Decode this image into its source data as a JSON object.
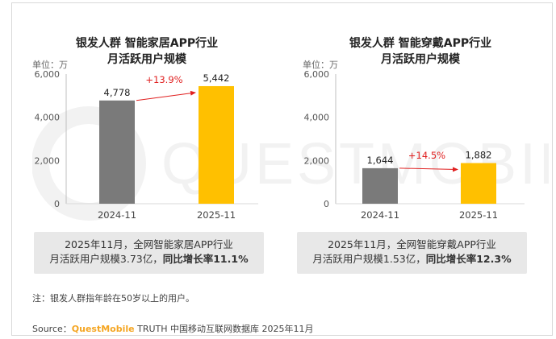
{
  "watermark": "QUESTMOBILE",
  "charts": [
    {
      "title_line1": "银发人群 智能家居APP行业",
      "title_line2": "月活跃用户规模",
      "unit": "单位：万",
      "summary_line1": "2025年11月，全网智能家居APP行业",
      "summary_line2_plain": "月活跃用户规模3.73亿，",
      "summary_line2_bold": "同比增长率11.1%"
    },
    {
      "title_line1": "银发人群 智能穿戴APP行业",
      "title_line2": "月活跃用户规模",
      "unit": "单位：万",
      "summary_line1": "2025年11月，全网智能穿戴APP行业",
      "summary_line2_plain": "月活跃用户规模1.53亿，",
      "summary_line2_bold": "同比增长率12.3%"
    }
  ],
  "chart_data": [
    {
      "type": "bar",
      "title": "银发人群 智能家居APP行业 月活跃用户规模",
      "categories": [
        "2024-11",
        "2025-11"
      ],
      "values": [
        4778,
        5442
      ],
      "value_labels": [
        "4,778",
        "5,442"
      ],
      "ylim": [
        0,
        6000
      ],
      "yticks": [
        0,
        2000,
        4000,
        6000
      ],
      "ytick_labels": [
        "0",
        "2,000",
        "4,000",
        "6,000"
      ],
      "growth_label": "+13.9%",
      "bar_colors": [
        "#7a7a7a",
        "#ffc000"
      ],
      "arrow_color": "#e02020"
    },
    {
      "type": "bar",
      "title": "银发人群 智能穿戴APP行业 月活跃用户规模",
      "categories": [
        "2024-11",
        "2025-11"
      ],
      "values": [
        1644,
        1882
      ],
      "value_labels": [
        "1,644",
        "1,882"
      ],
      "ylim": [
        0,
        6000
      ],
      "yticks": [
        0,
        2000,
        4000,
        6000
      ],
      "ytick_labels": [
        "0",
        "2,000",
        "4,000",
        "6,000"
      ],
      "growth_label": "+14.5%",
      "bar_colors": [
        "#7a7a7a",
        "#ffc000"
      ],
      "arrow_color": "#e02020"
    }
  ],
  "note": "注：银发人群指年龄在50岁以上的用户。",
  "source_prefix": "Source：",
  "source_brand": "QuestMobile",
  "source_rest": " TRUTH 中国移动互联网数据库 2025年11月"
}
